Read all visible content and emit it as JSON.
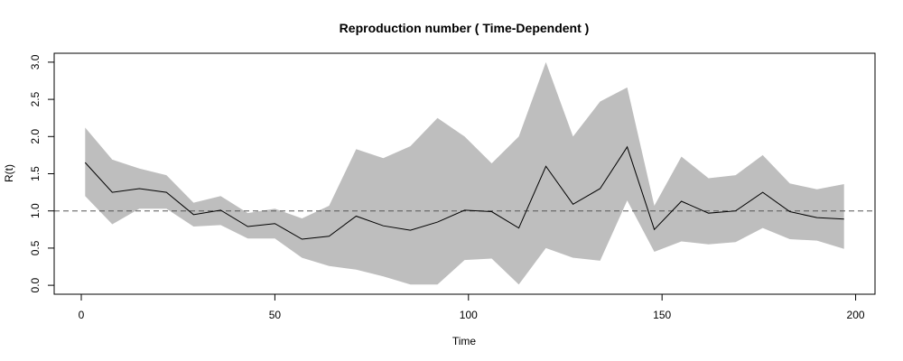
{
  "chart_data": {
    "type": "line",
    "title": "Reproduction number ( Time-Dependent )",
    "xlabel": "Time",
    "ylabel": "R(t)",
    "xlim": [
      -7,
      205
    ],
    "ylim": [
      -0.12,
      3.12
    ],
    "x_ticks": [
      0,
      50,
      100,
      150,
      200
    ],
    "x_tick_labels": [
      "0",
      "50",
      "100",
      "150",
      "200"
    ],
    "y_ticks": [
      0,
      0.5,
      1,
      1.5,
      2,
      2.5,
      3
    ],
    "y_tick_labels": [
      "0.0",
      "0.5",
      "1.0",
      "1.5",
      "2.0",
      "2.5",
      "3.0"
    ],
    "reference_line": {
      "y": 1.0,
      "style": "dashed"
    },
    "grid": false,
    "x": [
      1,
      8,
      15,
      22,
      29,
      36,
      43,
      50,
      57,
      64,
      71,
      78,
      85,
      92,
      99,
      106,
      113,
      120,
      127,
      134,
      141,
      148,
      155,
      162,
      169,
      176,
      183,
      190,
      197
    ],
    "series": [
      {
        "values": [
          1.65,
          1.25,
          1.3,
          1.25,
          0.95,
          1.01,
          0.79,
          0.83,
          0.62,
          0.66,
          0.93,
          0.8,
          0.74,
          0.85,
          1.01,
          0.99,
          0.77,
          1.6,
          1.09,
          1.3,
          1.86,
          0.75,
          1.13,
          0.97,
          1.0,
          1.25,
          0.99,
          0.91,
          0.89
        ],
        "color": "#000000"
      }
    ],
    "band": {
      "lower": [
        1.2,
        0.82,
        1.03,
        1.03,
        0.79,
        0.81,
        0.63,
        0.63,
        0.37,
        0.26,
        0.21,
        0.12,
        0.01,
        0.01,
        0.34,
        0.36,
        0.01,
        0.5,
        0.37,
        0.33,
        1.14,
        0.45,
        0.59,
        0.55,
        0.58,
        0.77,
        0.62,
        0.6,
        0.49
      ],
      "upper": [
        2.12,
        1.69,
        1.57,
        1.48,
        1.11,
        1.2,
        0.97,
        1.03,
        0.9,
        1.07,
        1.83,
        1.71,
        1.87,
        2.25,
        2.0,
        1.64,
        2.0,
        3.0,
        2.0,
        2.47,
        2.66,
        1.07,
        1.73,
        1.44,
        1.48,
        1.75,
        1.37,
        1.29,
        1.36
      ],
      "color": "#bebebe"
    }
  }
}
